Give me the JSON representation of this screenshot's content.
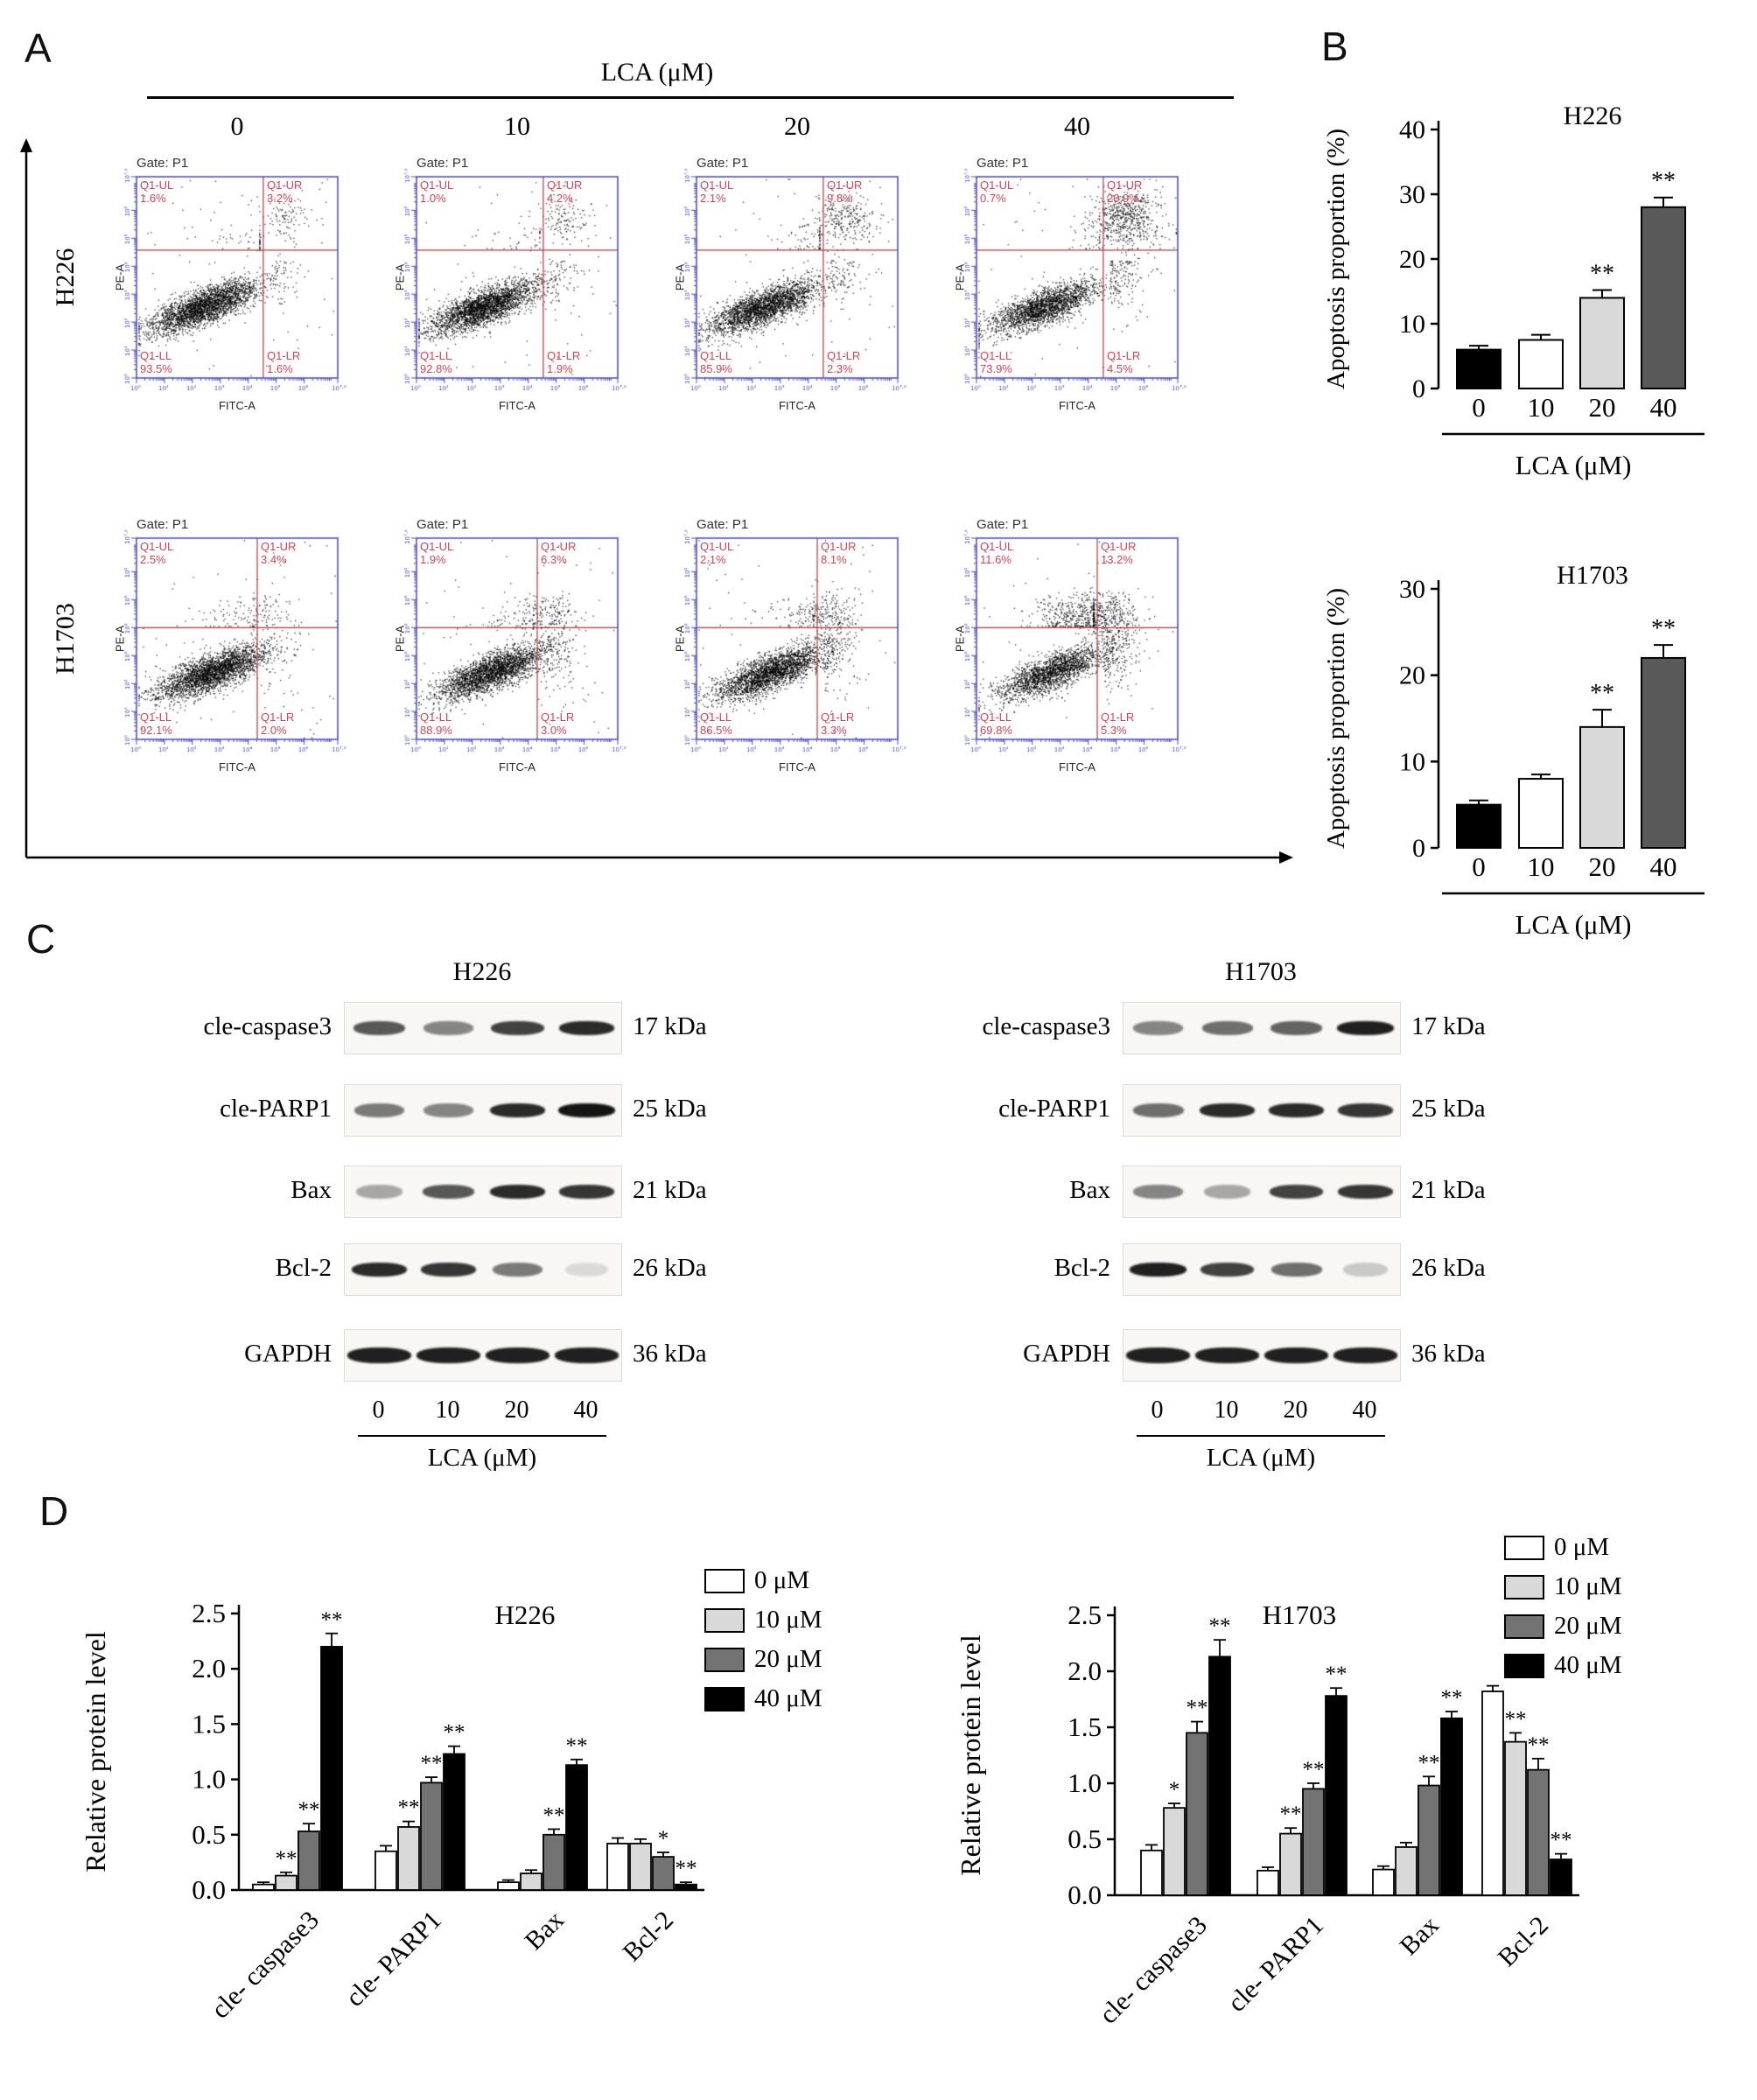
{
  "panel_a": {
    "label": "A",
    "axis_title": "LCA (μM)",
    "doses": [
      "0",
      "10",
      "20",
      "40"
    ],
    "gate_label": "Gate: P1",
    "x_axis_label": "FITC-A",
    "y_axis_label": "PE-A",
    "quadrant_names": {
      "ul": "Q1-UL",
      "ur": "Q1-UR",
      "ll": "Q1-LL",
      "lr": "Q1-LR"
    },
    "tick_exponents": [
      "0",
      "1",
      "2",
      "3",
      "4",
      "5",
      "6",
      "7.2"
    ],
    "rows": [
      {
        "cell_line": "H226",
        "plots": [
          {
            "ul": "1.6%",
            "ur": "3.2%",
            "ll": "93.5%",
            "lr": "1.6%"
          },
          {
            "ul": "1.0%",
            "ur": "4.2%",
            "ll": "92.8%",
            "lr": "1.9%"
          },
          {
            "ul": "2.1%",
            "ur": "9.8%",
            "ll": "85.9%",
            "lr": "2.3%"
          },
          {
            "ul": "0.7%",
            "ur": "20.9%",
            "ll": "73.9%",
            "lr": "4.5%"
          }
        ]
      },
      {
        "cell_line": "H1703",
        "plots": [
          {
            "ul": "2.5%",
            "ur": "3.4%",
            "ll": "92.1%",
            "lr": "2.0%"
          },
          {
            "ul": "1.9%",
            "ur": "6.3%",
            "ll": "88.9%",
            "lr": "3.0%"
          },
          {
            "ul": "2.1%",
            "ur": "8.1%",
            "ll": "86.5%",
            "lr": "3.3%"
          },
          {
            "ul": "11.6%",
            "ur": "13.2%",
            "ll": "69.8%",
            "lr": "5.3%"
          }
        ]
      }
    ]
  },
  "panel_b": {
    "label": "B"
  },
  "panel_c": {
    "label": "C",
    "lane_labels": [
      "0",
      "10",
      "20",
      "40"
    ],
    "axis_label": "LCA (μM)",
    "blocks": [
      {
        "title": "H226",
        "rows": [
          {
            "protein": "cle-caspase3",
            "kda": "17 kDa",
            "intensities": [
              0.7,
              0.5,
              0.8,
              0.9
            ]
          },
          {
            "protein": "cle-PARP1",
            "kda": "25 kDa",
            "intensities": [
              0.55,
              0.5,
              0.9,
              1.0
            ]
          },
          {
            "protein": "Bax",
            "kda": "21 kDa",
            "intensities": [
              0.35,
              0.7,
              0.9,
              0.85
            ]
          },
          {
            "protein": "Bcl-2",
            "kda": "26 kDa",
            "intensities": [
              0.9,
              0.85,
              0.55,
              0.12
            ]
          },
          {
            "protein": "GAPDH",
            "kda": "36 kDa",
            "intensities": [
              0.95,
              0.95,
              0.95,
              0.95
            ]
          }
        ]
      },
      {
        "title": "H1703",
        "rows": [
          {
            "protein": "cle-caspase3",
            "kda": "17 kDa",
            "intensities": [
              0.5,
              0.6,
              0.65,
              0.95
            ]
          },
          {
            "protein": "cle-PARP1",
            "kda": "25 kDa",
            "intensities": [
              0.6,
              0.9,
              0.9,
              0.85
            ]
          },
          {
            "protein": "Bax",
            "kda": "21 kDa",
            "intensities": [
              0.5,
              0.35,
              0.8,
              0.85
            ]
          },
          {
            "protein": "Bcl-2",
            "kda": "26 kDa",
            "intensities": [
              0.95,
              0.8,
              0.6,
              0.2
            ]
          },
          {
            "protein": "GAPDH",
            "kda": "36 kDa",
            "intensities": [
              0.95,
              0.95,
              0.95,
              0.95
            ]
          }
        ]
      }
    ]
  },
  "panel_d": {
    "label": "D"
  },
  "chart_data": [
    {
      "id": "b_h226",
      "panel": "B",
      "type": "bar",
      "title": "H226",
      "ylabel": "Apoptosis proportion (%)",
      "xlabel": "LCA (μM)",
      "categories": [
        "0",
        "10",
        "20",
        "40"
      ],
      "values": [
        6,
        7.5,
        14,
        28
      ],
      "errors": [
        0.6,
        0.8,
        1.2,
        1.5
      ],
      "significance": [
        "",
        "",
        "**",
        "**"
      ],
      "ylim": [
        0,
        40
      ],
      "yticks": [
        0,
        10,
        20,
        30,
        40
      ],
      "bar_colors": [
        "#000000",
        "#ffffff",
        "#d9d9d9",
        "#595959"
      ]
    },
    {
      "id": "b_h1703",
      "panel": "B",
      "type": "bar",
      "title": "H1703",
      "ylabel": "Apoptosis proportion (%)",
      "xlabel": "LCA (μM)",
      "categories": [
        "0",
        "10",
        "20",
        "40"
      ],
      "values": [
        5,
        8,
        14,
        22
      ],
      "errors": [
        0.5,
        0.5,
        2,
        1.5
      ],
      "significance": [
        "",
        "",
        "**",
        "**"
      ],
      "ylim": [
        0,
        30
      ],
      "yticks": [
        0,
        10,
        20,
        30
      ],
      "bar_colors": [
        "#000000",
        "#ffffff",
        "#d9d9d9",
        "#595959"
      ]
    },
    {
      "id": "d_h226",
      "panel": "D",
      "type": "grouped-bar",
      "title": "H226",
      "ylabel": "Relative protein level",
      "categories": [
        "cle- caspase3",
        "cle- PARP1",
        "Bax",
        "Bcl-2"
      ],
      "ylim": [
        0,
        2.5
      ],
      "yticks": [
        0.0,
        0.5,
        1.0,
        1.5,
        2.0,
        2.5
      ],
      "series": [
        {
          "name": "0 μM",
          "color": "#ffffff",
          "values": [
            0.05,
            0.35,
            0.07,
            0.42
          ],
          "errors": [
            0.02,
            0.05,
            0.02,
            0.05
          ],
          "significance": [
            "",
            "",
            "",
            ""
          ]
        },
        {
          "name": "10 μM",
          "color": "#d9d9d9",
          "values": [
            0.13,
            0.57,
            0.15,
            0.42
          ],
          "errors": [
            0.03,
            0.05,
            0.03,
            0.04
          ],
          "significance": [
            "**",
            "**",
            "",
            ""
          ]
        },
        {
          "name": "20 μM",
          "color": "#737373",
          "values": [
            0.53,
            0.97,
            0.5,
            0.3
          ],
          "errors": [
            0.07,
            0.05,
            0.05,
            0.04
          ],
          "significance": [
            "**",
            "**",
            "**",
            "*"
          ]
        },
        {
          "name": "40 μM",
          "color": "#000000",
          "values": [
            2.2,
            1.23,
            1.13,
            0.05
          ],
          "errors": [
            0.12,
            0.07,
            0.05,
            0.02
          ],
          "significance": [
            "**",
            "**",
            "**",
            "**"
          ]
        }
      ]
    },
    {
      "id": "d_h1703",
      "panel": "D",
      "type": "grouped-bar",
      "title": "H1703",
      "ylabel": "Relative protein level",
      "categories": [
        "cle- caspase3",
        "cle- PARP1",
        "Bax",
        "Bcl-2"
      ],
      "ylim": [
        0,
        2.5
      ],
      "yticks": [
        0.0,
        0.5,
        1.0,
        1.5,
        2.0,
        2.5
      ],
      "series": [
        {
          "name": "0 μM",
          "color": "#ffffff",
          "values": [
            0.4,
            0.22,
            0.23,
            1.82
          ],
          "errors": [
            0.05,
            0.03,
            0.03,
            0.05
          ],
          "significance": [
            "",
            "",
            "",
            ""
          ]
        },
        {
          "name": "10 μM",
          "color": "#d9d9d9",
          "values": [
            0.78,
            0.55,
            0.43,
            1.37
          ],
          "errors": [
            0.04,
            0.05,
            0.04,
            0.08
          ],
          "significance": [
            "*",
            "**",
            "",
            "**"
          ]
        },
        {
          "name": "20 μM",
          "color": "#737373",
          "values": [
            1.45,
            0.95,
            0.98,
            1.12
          ],
          "errors": [
            0.1,
            0.05,
            0.08,
            0.1
          ],
          "significance": [
            "**",
            "**",
            "**",
            "**"
          ]
        },
        {
          "name": "40 μM",
          "color": "#000000",
          "values": [
            2.13,
            1.78,
            1.58,
            0.32
          ],
          "errors": [
            0.15,
            0.07,
            0.06,
            0.05
          ],
          "significance": [
            "**",
            "**",
            "**",
            "**"
          ]
        }
      ]
    }
  ]
}
